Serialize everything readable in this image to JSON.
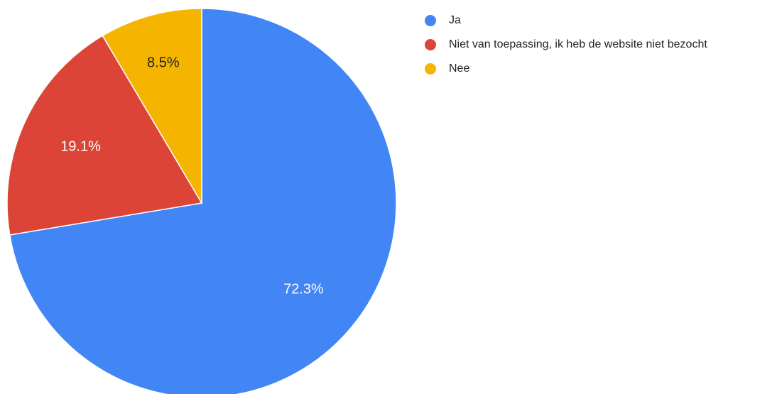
{
  "chart_data": {
    "type": "pie",
    "title": "",
    "categories": [
      "Ja",
      "Niet van toepassing, ik heb de website niet bezocht",
      "Nee"
    ],
    "values": [
      72.3,
      19.1,
      8.5
    ],
    "value_labels": [
      "72.3%",
      "19.1%",
      "8.5%"
    ],
    "colors": [
      "#4285f4",
      "#db4437",
      "#f4b400"
    ],
    "label_colors": [
      "#ffffff",
      "#ffffff",
      "#222222"
    ],
    "start_angle_deg": 0,
    "direction": "clockwise",
    "legend_position": "right"
  }
}
